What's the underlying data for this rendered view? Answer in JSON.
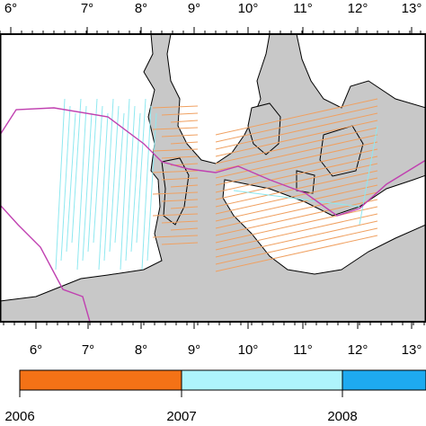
{
  "map": {
    "top_ticks": [
      "6°",
      "7°",
      "8°",
      "9°",
      "10°",
      "11°",
      "12°",
      "13°"
    ],
    "bottom_ticks": [
      "6°",
      "7°",
      "8°",
      "9°",
      "10°",
      "11°",
      "12°",
      "13°"
    ],
    "legend": {
      "labels": [
        "2006",
        "2007",
        "2008"
      ],
      "colors": [
        "#f47216",
        "#aef4fc",
        "#1eaaf0"
      ]
    }
  }
}
